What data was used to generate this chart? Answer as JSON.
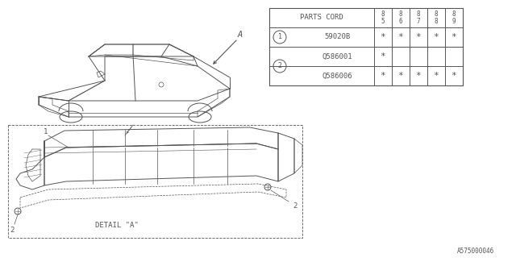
{
  "bg_color": "#ffffff",
  "line_color": "#555555",
  "table": {
    "header_label": "PARTS CORD",
    "years": [
      "85",
      "86",
      "87",
      "88",
      "89"
    ],
    "rows": [
      {
        "num": "1",
        "part": "59020B",
        "avail": [
          true,
          true,
          true,
          true,
          true
        ]
      },
      {
        "num": "2",
        "part": "Q586001",
        "avail": [
          true,
          false,
          false,
          false,
          false
        ]
      },
      {
        "num": "2",
        "part": "Q586006",
        "avail": [
          true,
          true,
          true,
          true,
          true
        ]
      }
    ]
  },
  "footer_code": "A575000046",
  "detail_label": "DETAIL \"A\""
}
